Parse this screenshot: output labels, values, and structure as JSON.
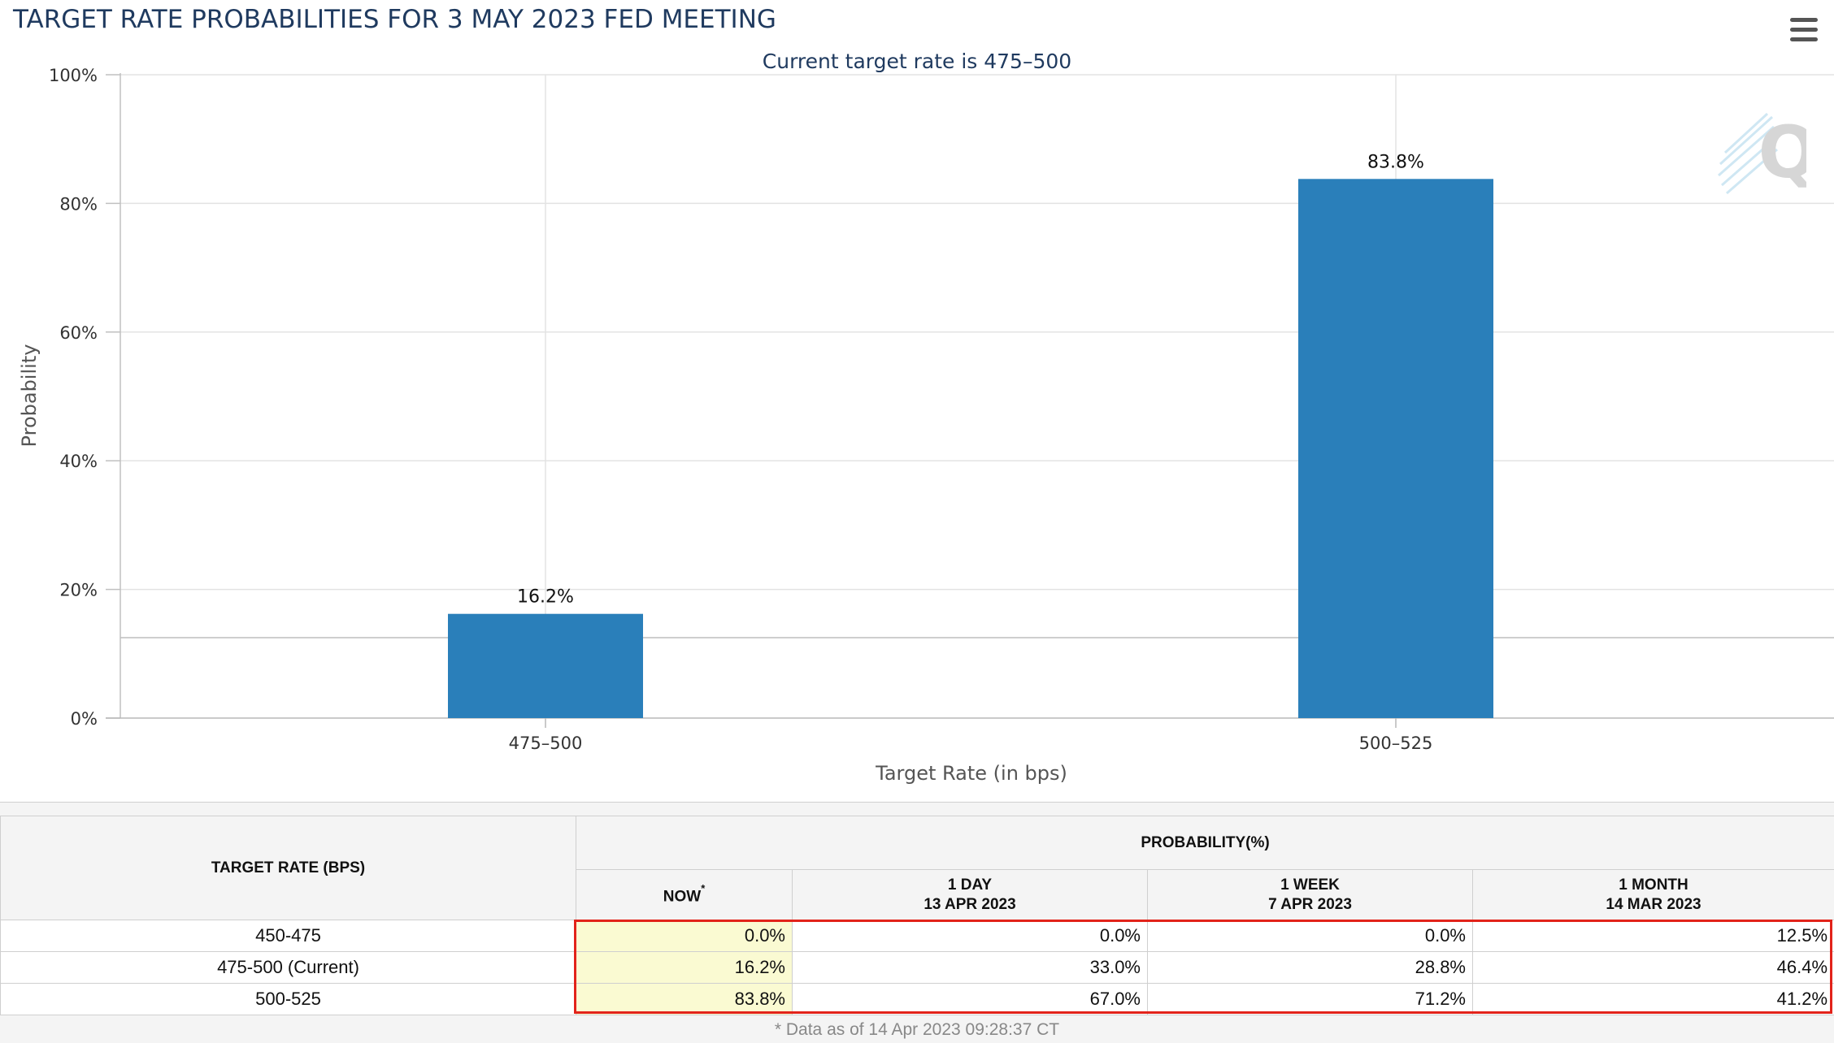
{
  "header": {
    "title": "TARGET RATE PROBABILITIES FOR 3 MAY 2023 FED MEETING",
    "menu_icon": "hamburger-menu-icon",
    "watermark_icon": "q-logo-icon"
  },
  "chart_data": {
    "type": "bar",
    "title": "TARGET RATE PROBABILITIES FOR 3 MAY 2023 FED MEETING",
    "subtitle": "Current target rate is 475–500",
    "xlabel": "Target Rate (in bps)",
    "ylabel": "Probability",
    "categories": [
      "475–500",
      "500–525"
    ],
    "values": [
      16.2,
      83.8
    ],
    "data_labels": [
      "16.2%",
      "83.8%"
    ],
    "ylim": [
      0,
      100
    ],
    "yticks": [
      0,
      20,
      40,
      60,
      80,
      100
    ],
    "ytick_labels": [
      "0%",
      "20%",
      "40%",
      "60%",
      "80%",
      "100%"
    ],
    "reference_line": 12.5,
    "grid": true,
    "bar_color": "#2a7fba"
  },
  "table": {
    "rate_header": "TARGET RATE (BPS)",
    "probability_header": "PROBABILITY(%)",
    "columns": [
      {
        "label": "NOW",
        "star": "*",
        "date": ""
      },
      {
        "label": "1 DAY",
        "date": "13 APR 2023"
      },
      {
        "label": "1 WEEK",
        "date": "7 APR 2023"
      },
      {
        "label": "1 MONTH",
        "date": "14 MAR 2023"
      }
    ],
    "rows": [
      {
        "rate": "450-475",
        "values": [
          "0.0%",
          "0.0%",
          "0.0%",
          "12.5%"
        ]
      },
      {
        "rate": "475-500 (Current)",
        "values": [
          "16.2%",
          "33.0%",
          "28.8%",
          "46.4%"
        ]
      },
      {
        "rate": "500-525",
        "values": [
          "83.8%",
          "67.0%",
          "71.2%",
          "41.2%"
        ]
      }
    ],
    "highlight_color": "#e2231a",
    "now_color": "#fafad2"
  },
  "footnote": "* Data as of 14 Apr 2023 09:28:37 CT"
}
